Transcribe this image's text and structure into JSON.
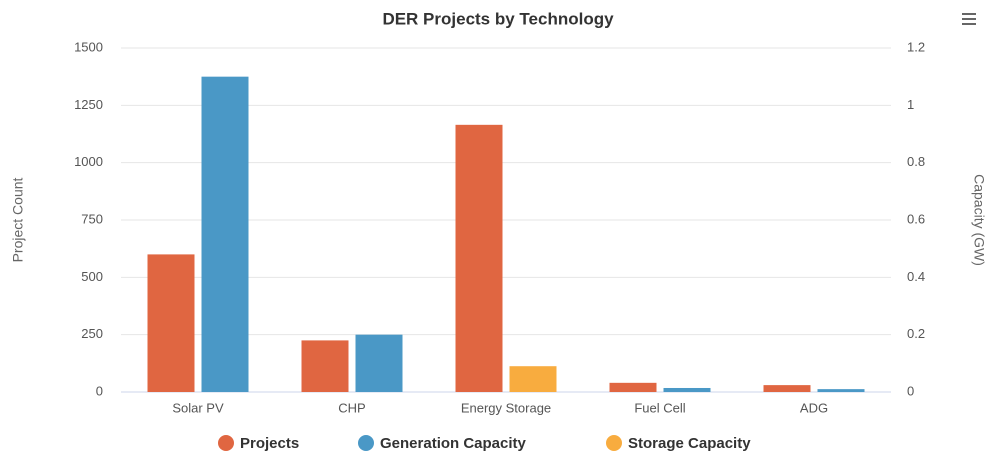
{
  "chart_data": {
    "type": "bar",
    "title": "DER Projects by Technology",
    "categories": [
      "Solar PV",
      "CHP",
      "Energy Storage",
      "Fuel Cell",
      "ADG"
    ],
    "y_label": "Project Count",
    "y2_label": "Capacity (GW)",
    "series": [
      {
        "name": "Projects",
        "color": "#e06641",
        "values": [
          600,
          225,
          1165,
          40,
          30
        ]
      },
      {
        "name": "Generation Capacity",
        "color": "#4a98c6",
        "axis": "y2",
        "values": [
          1.1,
          0.2,
          null,
          0.014,
          0.01
        ]
      },
      {
        "name": "Storage Capacity",
        "color": "#f8ac3f",
        "axis": "y2",
        "values": [
          null,
          null,
          0.09,
          null,
          null
        ]
      }
    ],
    "ylim": [
      0,
      1500
    ],
    "yticks": [
      0,
      250,
      500,
      750,
      1000,
      1250,
      1500
    ],
    "y2lim": [
      0,
      1.2
    ],
    "y2ticks": [
      0,
      0.2,
      0.4,
      0.6,
      0.8,
      1,
      1.2
    ],
    "grid": true,
    "legend": "bottom"
  }
}
